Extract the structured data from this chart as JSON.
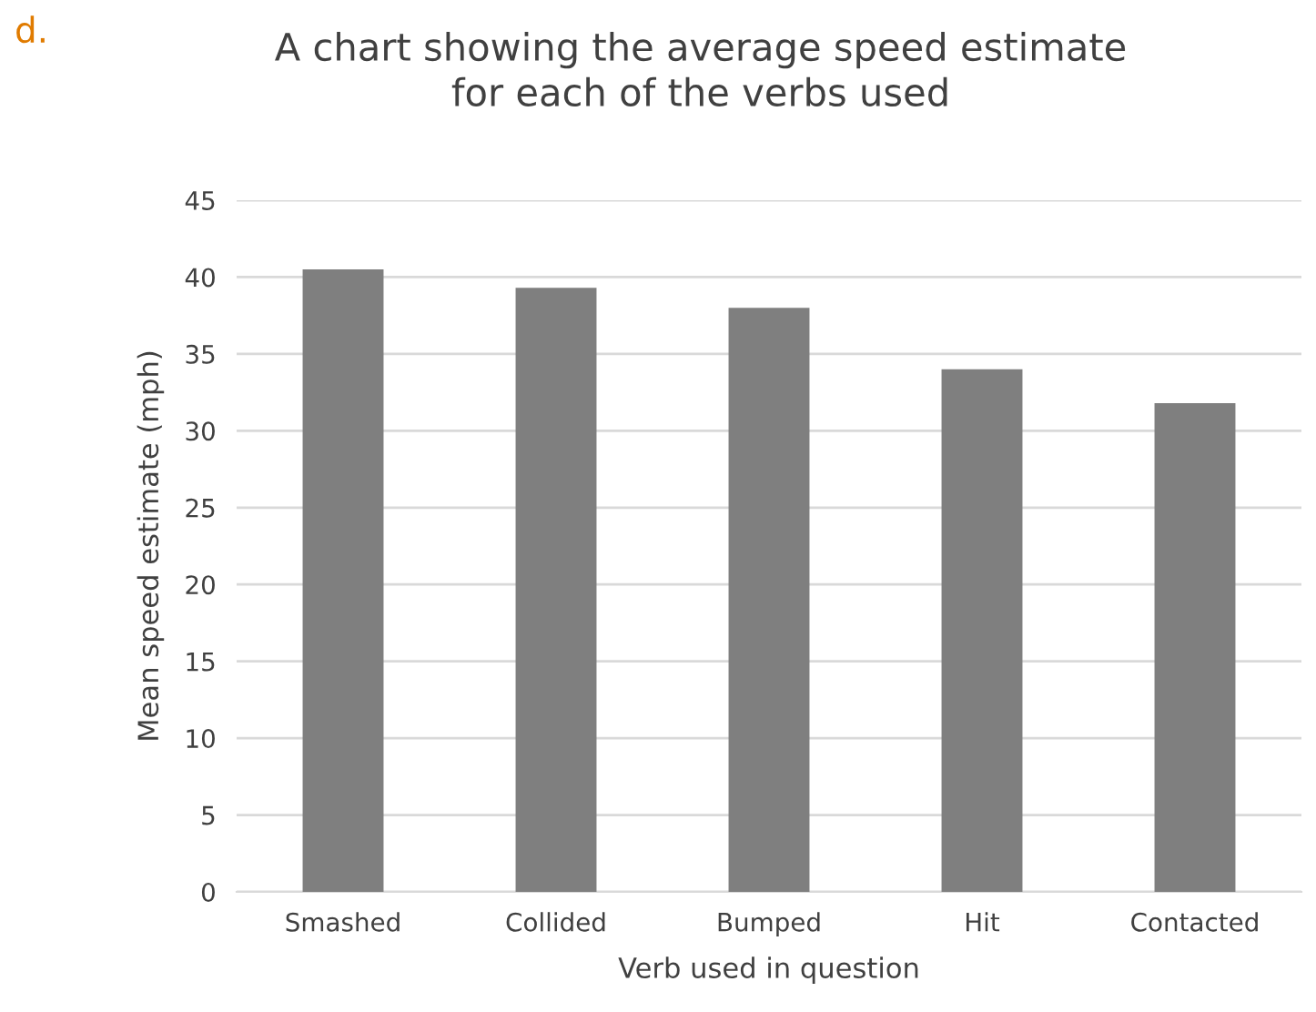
{
  "chart_data": {
    "type": "bar",
    "title": "A chart showing the average speed estimate\nfor each of the verbs used",
    "xlabel": "Verb used in question",
    "ylabel": "Mean speed estimate (mph)",
    "categories": [
      "Smashed",
      "Collided",
      "Bumped",
      "Hit",
      "Contacted"
    ],
    "values": [
      40.5,
      39.3,
      38,
      34,
      31.8
    ],
    "color": "#7f7f7f",
    "ylim": [
      0,
      45
    ],
    "yticks": [
      0,
      5,
      10,
      15,
      20,
      25,
      30,
      35,
      40,
      45
    ],
    "grid": "y",
    "annotations": [
      "d."
    ]
  }
}
